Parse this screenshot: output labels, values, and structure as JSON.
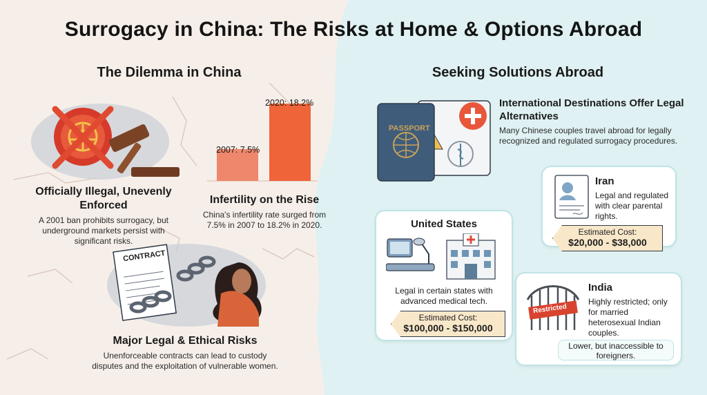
{
  "title": "Surrogacy in China: The Risks at Home & Options Abroad",
  "left_section": {
    "heading": "The Dilemma in China",
    "illegal": {
      "title": "Officially Illegal, Unevenly Enforced",
      "desc": "A 2001 ban prohibits surrogacy, but underground markets persist with significant risks."
    },
    "infertility": {
      "title": "Infertility on the Rise",
      "desc": "China's infertility rate surged from 7.5% in 2007 to 18.2% in 2020.",
      "bar_2007_label": "2007: 7.5%",
      "bar_2020_label": "2020: 18.2%"
    },
    "risks": {
      "contract_text": "CONTRACT",
      "title": "Major Legal & Ethical Risks",
      "desc": "Unenforceable contracts can lead to custody disputes and the exploitation of vulnerable women."
    }
  },
  "chart_data": {
    "type": "bar",
    "categories": [
      "2007",
      "2020"
    ],
    "values": [
      7.5,
      18.2
    ],
    "title": "Infertility on the Rise",
    "xlabel": "",
    "ylabel": "",
    "colors": [
      "#ee876b",
      "#ef6438"
    ]
  },
  "right_section": {
    "heading": "Seeking Solutions Abroad",
    "passport_text": "PASSPORT",
    "intl": {
      "title": "International Destinations Offer Legal Alternatives",
      "desc": "Many Chinese couples travel abroad for legally recognized and regulated surrogacy procedures."
    },
    "us": {
      "name": "United States",
      "desc": "Legal in certain states with advanced medical tech.",
      "cost_label": "Estimated Cost:",
      "cost_value": "$100,000 - $150,000"
    },
    "iran": {
      "name": "Iran",
      "desc": "Legal and regulated with clear parental rights.",
      "cost_label": "Estimated Cost:",
      "cost_value": "$20,000 - $38,000"
    },
    "india": {
      "name": "India",
      "desc": "Highly restricted; only for married heterosexual Indian couples.",
      "sign_text": "Restricted",
      "cost_note": "Lower, but inaccessible to foreigners."
    }
  },
  "colors": {
    "left_bg": "#f6efe9",
    "right_bg": "#dff1f2",
    "accent_orange": "#ef6438",
    "card_border": "#bfe3e6",
    "tag_fill": "#f8e7c9"
  }
}
